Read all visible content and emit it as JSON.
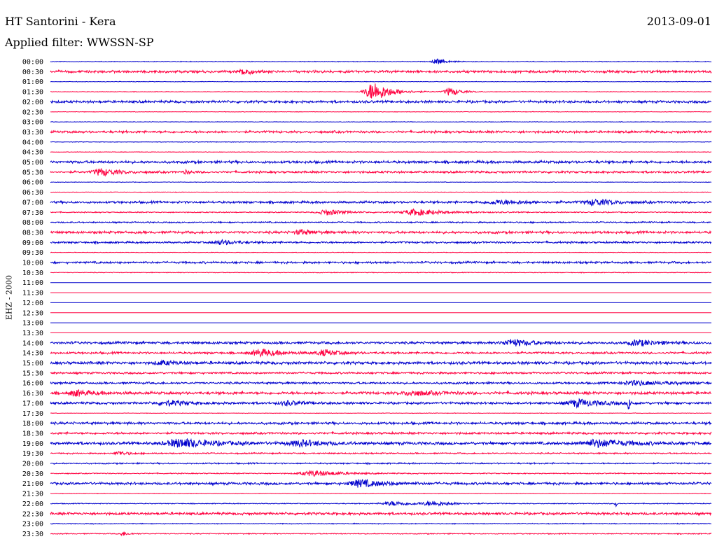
{
  "header": {
    "title": "HT Santorini - Kera",
    "date": "2013-09-01",
    "filter": "Applied filter: WWSSN-SP"
  },
  "chart_data": {
    "type": "line",
    "title": "HT Santorini - Kera",
    "ylabel": "EHZ - 2000",
    "xlabel": "",
    "grid": false,
    "series_colors": [
      "#0000cc",
      "#ff0040"
    ],
    "rows": [
      {
        "time": "00:00",
        "noise": 0.4,
        "events": [
          {
            "t": 0.585,
            "w": 0.012,
            "a": 4
          }
        ]
      },
      {
        "time": "00:30",
        "noise": 1.4,
        "events": [
          {
            "t": 0.293,
            "w": 0.009,
            "a": 6
          }
        ]
      },
      {
        "time": "01:00",
        "noise": 0.3,
        "events": []
      },
      {
        "time": "01:30",
        "noise": 0.3,
        "events": [
          {
            "t": 0.49,
            "w": 0.022,
            "a": 14
          },
          {
            "t": 0.605,
            "w": 0.014,
            "a": 6
          }
        ]
      },
      {
        "time": "02:00",
        "noise": 1.4,
        "events": []
      },
      {
        "time": "02:30",
        "noise": 0.3,
        "events": []
      },
      {
        "time": "03:00",
        "noise": 0.3,
        "events": []
      },
      {
        "time": "03:30",
        "noise": 1.3,
        "events": []
      },
      {
        "time": "04:00",
        "noise": 0.3,
        "events": []
      },
      {
        "time": "04:30",
        "noise": 0.3,
        "events": []
      },
      {
        "time": "05:00",
        "noise": 1.5,
        "events": []
      },
      {
        "time": "05:30",
        "noise": 1.2,
        "events": [
          {
            "t": 0.078,
            "w": 0.02,
            "a": 5
          },
          {
            "t": 0.205,
            "w": 0.008,
            "a": 2
          }
        ]
      },
      {
        "time": "06:00",
        "noise": 0.3,
        "events": []
      },
      {
        "time": "06:30",
        "noise": 0.3,
        "events": []
      },
      {
        "time": "07:00",
        "noise": 1.3,
        "events": [
          {
            "t": 0.68,
            "w": 0.04,
            "a": 2.5
          },
          {
            "t": 0.825,
            "w": 0.025,
            "a": 4
          }
        ]
      },
      {
        "time": "07:30",
        "noise": 0.6,
        "events": [
          {
            "t": 0.42,
            "w": 0.022,
            "a": 4
          },
          {
            "t": 0.555,
            "w": 0.035,
            "a": 4.5
          }
        ]
      },
      {
        "time": "08:00",
        "noise": 0.8,
        "events": []
      },
      {
        "time": "08:30",
        "noise": 1.4,
        "events": [
          {
            "t": 0.38,
            "w": 0.018,
            "a": 3
          }
        ]
      },
      {
        "time": "09:00",
        "noise": 1.1,
        "events": [
          {
            "t": 0.26,
            "w": 0.02,
            "a": 3
          }
        ]
      },
      {
        "time": "09:30",
        "noise": 0.3,
        "events": []
      },
      {
        "time": "10:00",
        "noise": 1.2,
        "events": []
      },
      {
        "time": "10:30",
        "noise": 0.4,
        "events": []
      },
      {
        "time": "11:00",
        "noise": 0,
        "events": []
      },
      {
        "time": "11:30",
        "noise": 0,
        "events": []
      },
      {
        "time": "12:00",
        "noise": 0,
        "events": []
      },
      {
        "time": "12:30",
        "noise": 0,
        "events": []
      },
      {
        "time": "13:00",
        "noise": 0,
        "events": []
      },
      {
        "time": "13:30",
        "noise": 0,
        "events": []
      },
      {
        "time": "14:00",
        "noise": 1.4,
        "events": [
          {
            "t": 0.7,
            "w": 0.025,
            "a": 5
          },
          {
            "t": 0.89,
            "w": 0.025,
            "a": 4
          }
        ]
      },
      {
        "time": "14:30",
        "noise": 1.2,
        "events": [
          {
            "t": 0.32,
            "w": 0.025,
            "a": 5
          },
          {
            "t": 0.415,
            "w": 0.02,
            "a": 4
          }
        ]
      },
      {
        "time": "15:00",
        "noise": 1.6,
        "events": [
          {
            "t": 0.17,
            "w": 0.02,
            "a": 2.5
          }
        ]
      },
      {
        "time": "15:30",
        "noise": 1.1,
        "events": []
      },
      {
        "time": "16:00",
        "noise": 1.2,
        "events": [
          {
            "t": 0.89,
            "w": 0.04,
            "a": 3
          }
        ]
      },
      {
        "time": "16:30",
        "noise": 1.6,
        "events": [
          {
            "t": 0.04,
            "w": 0.02,
            "a": 4
          },
          {
            "t": 0.55,
            "w": 0.03,
            "a": 3
          }
        ]
      },
      {
        "time": "17:00",
        "noise": 1.3,
        "events": [
          {
            "t": 0.18,
            "w": 0.03,
            "a": 3
          },
          {
            "t": 0.36,
            "w": 0.02,
            "a": 3
          },
          {
            "t": 0.8,
            "w": 0.03,
            "a": 5
          },
          {
            "t": 0.875,
            "w": 0.002,
            "a": 11
          }
        ]
      },
      {
        "time": "17:30",
        "noise": 0.3,
        "events": []
      },
      {
        "time": "18:00",
        "noise": 1.4,
        "events": []
      },
      {
        "time": "18:30",
        "noise": 1.2,
        "events": []
      },
      {
        "time": "19:00",
        "noise": 1.6,
        "events": [
          {
            "t": 0.2,
            "w": 0.04,
            "a": 6
          },
          {
            "t": 0.38,
            "w": 0.03,
            "a": 4
          },
          {
            "t": 0.83,
            "w": 0.04,
            "a": 5
          }
        ]
      },
      {
        "time": "19:30",
        "noise": 0.8,
        "events": [
          {
            "t": 0.105,
            "w": 0.012,
            "a": 3
          }
        ]
      },
      {
        "time": "20:00",
        "noise": 0.8,
        "events": []
      },
      {
        "time": "20:30",
        "noise": 0.6,
        "events": [
          {
            "t": 0.4,
            "w": 0.035,
            "a": 4
          }
        ]
      },
      {
        "time": "21:00",
        "noise": 1.4,
        "events": [
          {
            "t": 0.47,
            "w": 0.03,
            "a": 5
          }
        ]
      },
      {
        "time": "21:30",
        "noise": 0.3,
        "events": []
      },
      {
        "time": "22:00",
        "noise": 0.5,
        "events": [
          {
            "t": 0.52,
            "w": 0.03,
            "a": 3
          },
          {
            "t": 0.58,
            "w": 0.025,
            "a": 3
          },
          {
            "t": 0.855,
            "w": 0.002,
            "a": 6
          }
        ]
      },
      {
        "time": "22:30",
        "noise": 1.4,
        "events": []
      },
      {
        "time": "23:00",
        "noise": 0.5,
        "events": []
      },
      {
        "time": "23:30",
        "noise": 0.6,
        "events": [
          {
            "t": 0.11,
            "w": 0.008,
            "a": 3
          }
        ]
      }
    ]
  }
}
